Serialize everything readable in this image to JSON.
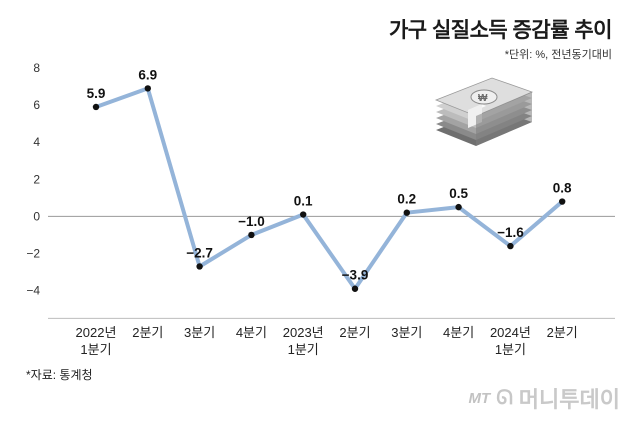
{
  "header": {
    "title": "가구 실질소득 증감률 추이",
    "unit_note": "*단위: %, 전년동기대비"
  },
  "footer": {
    "source": "*자료: 통계청",
    "brand_mt": "MT",
    "brand_name": "머니투데이"
  },
  "icon": {
    "name": "money-stack-icon"
  },
  "colors": {
    "line": "#94b4d9",
    "point": "#111111",
    "zero_line": "#9a9a9a",
    "grid": "#bdbdbd"
  },
  "chart_data": {
    "type": "line",
    "categories": [
      [
        "2022년",
        "1분기"
      ],
      [
        "2분기"
      ],
      [
        "3분기"
      ],
      [
        "4분기"
      ],
      [
        "2023년",
        "1분기"
      ],
      [
        "2분기"
      ],
      [
        "3분기"
      ],
      [
        "4분기"
      ],
      [
        "2024년",
        "1분기"
      ],
      [
        "2분기"
      ]
    ],
    "values": [
      5.9,
      6.9,
      -2.7,
      -1.0,
      0.1,
      -3.9,
      0.2,
      0.5,
      -1.6,
      0.8
    ],
    "data_labels": [
      "5.9",
      "6.9",
      "−2.7",
      "−1.0",
      "0.1",
      "−3.9",
      "0.2",
      "0.5",
      "−1.6",
      "0.8"
    ],
    "yticks": [
      8,
      6,
      4,
      2,
      0,
      -2,
      -4
    ],
    "ytick_labels": [
      "8",
      "6",
      "4",
      "2",
      "0",
      "−2",
      "−4"
    ],
    "ylim": [
      -5.5,
      8
    ],
    "title": "가구 실질소득 증감률 추이",
    "xlabel": "",
    "ylabel": "",
    "grid": false,
    "legend": "none"
  }
}
